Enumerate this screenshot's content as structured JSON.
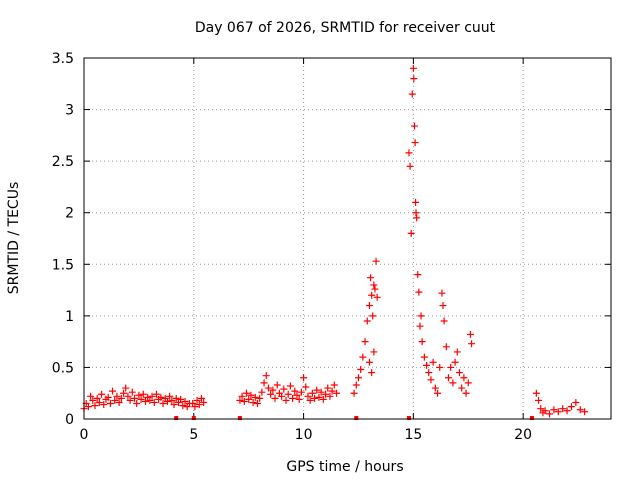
{
  "chart_data": {
    "type": "scatter",
    "title": "Day 067 of 2026, SRMTID for receiver cuut",
    "xlabel": "GPS time / hours",
    "ylabel": "SRMTID / TECUs",
    "xlim": [
      0,
      24
    ],
    "ylim": [
      0,
      3.5
    ],
    "xticks": [
      0,
      5,
      10,
      15,
      20
    ],
    "xtick_labels": [
      "0",
      "5",
      "10",
      "15",
      "20"
    ],
    "yticks": [
      0,
      0.5,
      1,
      1.5,
      2,
      2.5,
      3,
      3.5
    ],
    "ytick_labels": [
      "0",
      "0.5",
      "1",
      "1.5",
      "2",
      "2.5",
      "3",
      "3.5"
    ],
    "grid": true,
    "marker": "+",
    "marker_color": "#ff0000",
    "series": [
      {
        "name": "SRMTID",
        "points": [
          [
            0.0,
            0.1
          ],
          [
            0.1,
            0.15
          ],
          [
            0.2,
            0.12
          ],
          [
            0.3,
            0.22
          ],
          [
            0.4,
            0.18
          ],
          [
            0.5,
            0.13
          ],
          [
            0.6,
            0.2
          ],
          [
            0.7,
            0.16
          ],
          [
            0.8,
            0.24
          ],
          [
            0.9,
            0.14
          ],
          [
            1.0,
            0.19
          ],
          [
            1.1,
            0.21
          ],
          [
            1.2,
            0.15
          ],
          [
            1.3,
            0.27
          ],
          [
            1.4,
            0.18
          ],
          [
            1.5,
            0.22
          ],
          [
            1.6,
            0.16
          ],
          [
            1.7,
            0.2
          ],
          [
            1.8,
            0.25
          ],
          [
            1.9,
            0.3
          ],
          [
            2.0,
            0.22
          ],
          [
            2.1,
            0.18
          ],
          [
            2.2,
            0.26
          ],
          [
            2.3,
            0.2
          ],
          [
            2.4,
            0.15
          ],
          [
            2.5,
            0.23
          ],
          [
            2.6,
            0.19
          ],
          [
            2.7,
            0.24
          ],
          [
            2.8,
            0.17
          ],
          [
            2.9,
            0.21
          ],
          [
            3.0,
            0.18
          ],
          [
            3.1,
            0.22
          ],
          [
            3.2,
            0.16
          ],
          [
            3.3,
            0.24
          ],
          [
            3.4,
            0.19
          ],
          [
            3.5,
            0.21
          ],
          [
            3.6,
            0.15
          ],
          [
            3.7,
            0.2
          ],
          [
            3.8,
            0.17
          ],
          [
            3.9,
            0.22
          ],
          [
            4.0,
            0.18
          ],
          [
            4.1,
            0.14
          ],
          [
            4.2,
            0.2
          ],
          [
            4.3,
            0.16
          ],
          [
            4.4,
            0.19
          ],
          [
            4.5,
            0.13
          ],
          [
            4.6,
            0.17
          ],
          [
            4.7,
            0.12
          ],
          [
            4.8,
            0.15
          ],
          [
            4.95,
            0.15
          ],
          [
            5.05,
            0.12
          ],
          [
            5.15,
            0.18
          ],
          [
            5.25,
            0.14
          ],
          [
            5.35,
            0.2
          ],
          [
            5.45,
            0.16
          ],
          [
            7.1,
            0.18
          ],
          [
            7.2,
            0.22
          ],
          [
            7.3,
            0.17
          ],
          [
            7.4,
            0.25
          ],
          [
            7.5,
            0.19
          ],
          [
            7.6,
            0.23
          ],
          [
            7.7,
            0.16
          ],
          [
            7.8,
            0.21
          ],
          [
            7.9,
            0.15
          ],
          [
            8.0,
            0.2
          ],
          [
            8.1,
            0.26
          ],
          [
            8.2,
            0.35
          ],
          [
            8.3,
            0.42
          ],
          [
            8.4,
            0.3
          ],
          [
            8.5,
            0.24
          ],
          [
            8.6,
            0.28
          ],
          [
            8.7,
            0.2
          ],
          [
            8.8,
            0.33
          ],
          [
            8.9,
            0.25
          ],
          [
            9.0,
            0.22
          ],
          [
            9.1,
            0.29
          ],
          [
            9.2,
            0.18
          ],
          [
            9.3,
            0.24
          ],
          [
            9.4,
            0.32
          ],
          [
            9.5,
            0.2
          ],
          [
            9.6,
            0.27
          ],
          [
            9.7,
            0.23
          ],
          [
            9.8,
            0.19
          ],
          [
            9.9,
            0.26
          ],
          [
            10.0,
            0.4
          ],
          [
            10.1,
            0.31
          ],
          [
            10.2,
            0.22
          ],
          [
            10.3,
            0.18
          ],
          [
            10.4,
            0.25
          ],
          [
            10.5,
            0.2
          ],
          [
            10.6,
            0.28
          ],
          [
            10.7,
            0.21
          ],
          [
            10.8,
            0.26
          ],
          [
            10.9,
            0.19
          ],
          [
            11.0,
            0.24
          ],
          [
            11.1,
            0.3
          ],
          [
            11.2,
            0.22
          ],
          [
            11.3,
            0.27
          ],
          [
            11.4,
            0.33
          ],
          [
            11.5,
            0.25
          ],
          [
            12.3,
            0.25
          ],
          [
            12.4,
            0.33
          ],
          [
            12.5,
            0.4
          ],
          [
            12.6,
            0.48
          ],
          [
            12.7,
            0.6
          ],
          [
            12.8,
            0.75
          ],
          [
            12.9,
            0.95
          ],
          [
            13.0,
            1.1
          ],
          [
            13.05,
            1.37
          ],
          [
            13.1,
            1.2
          ],
          [
            13.15,
            1.0
          ],
          [
            13.2,
            1.3
          ],
          [
            13.25,
            1.26
          ],
          [
            13.3,
            1.53
          ],
          [
            13.35,
            1.18
          ],
          [
            13.1,
            0.45
          ],
          [
            13.2,
            0.65
          ],
          [
            13.0,
            0.55
          ],
          [
            14.8,
            2.58
          ],
          [
            14.85,
            2.45
          ],
          [
            14.9,
            1.8
          ],
          [
            14.95,
            3.15
          ],
          [
            15.0,
            3.4
          ],
          [
            15.02,
            3.3
          ],
          [
            15.05,
            2.84
          ],
          [
            15.08,
            2.68
          ],
          [
            15.1,
            2.1
          ],
          [
            15.12,
            2.0
          ],
          [
            15.15,
            1.95
          ],
          [
            15.2,
            1.4
          ],
          [
            15.25,
            1.23
          ],
          [
            15.3,
            0.9
          ],
          [
            15.35,
            1.0
          ],
          [
            15.4,
            0.75
          ],
          [
            15.5,
            0.6
          ],
          [
            15.6,
            0.52
          ],
          [
            15.7,
            0.45
          ],
          [
            15.8,
            0.38
          ],
          [
            15.9,
            0.55
          ],
          [
            16.0,
            0.3
          ],
          [
            16.1,
            0.25
          ],
          [
            16.2,
            0.5
          ],
          [
            16.3,
            1.22
          ],
          [
            16.35,
            1.1
          ],
          [
            16.4,
            0.95
          ],
          [
            16.5,
            0.7
          ],
          [
            16.6,
            0.4
          ],
          [
            16.7,
            0.5
          ],
          [
            16.8,
            0.35
          ],
          [
            16.9,
            0.55
          ],
          [
            17.0,
            0.65
          ],
          [
            17.1,
            0.45
          ],
          [
            17.2,
            0.3
          ],
          [
            17.3,
            0.4
          ],
          [
            17.4,
            0.25
          ],
          [
            17.5,
            0.35
          ],
          [
            17.6,
            0.82
          ],
          [
            17.65,
            0.73
          ],
          [
            20.6,
            0.25
          ],
          [
            20.7,
            0.18
          ],
          [
            20.8,
            0.1
          ],
          [
            20.9,
            0.06
          ],
          [
            21.0,
            0.08
          ],
          [
            21.2,
            0.05
          ],
          [
            21.4,
            0.09
          ],
          [
            21.6,
            0.07
          ],
          [
            21.8,
            0.1
          ],
          [
            22.0,
            0.08
          ],
          [
            22.2,
            0.12
          ],
          [
            22.4,
            0.16
          ],
          [
            22.6,
            0.09
          ],
          [
            22.8,
            0.07
          ]
        ]
      }
    ],
    "zero_markers_x": [
      4.2,
      5.0,
      7.1,
      12.4,
      14.8,
      20.4
    ]
  }
}
